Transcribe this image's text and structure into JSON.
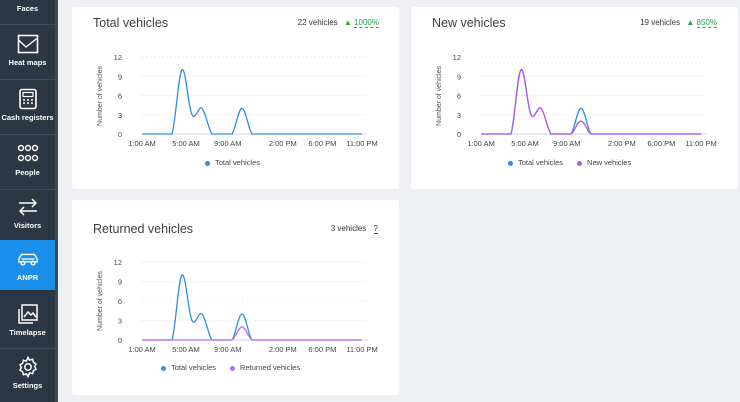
{
  "sidebar": {
    "items": [
      {
        "label": "Faces",
        "icon": "faces-icon"
      },
      {
        "label": "Heat maps",
        "icon": "heat-map-icon"
      },
      {
        "label": "Cash registers",
        "icon": "cash-register-icon"
      },
      {
        "label": "People",
        "icon": "people-icon"
      },
      {
        "label": "Visitors",
        "icon": "visitors-icon"
      },
      {
        "label": "ANPR",
        "icon": "car-icon",
        "active": true
      },
      {
        "label": "Timelapse",
        "icon": "timelapse-icon"
      },
      {
        "label": "Settings",
        "icon": "gear-icon"
      }
    ]
  },
  "colors": {
    "total": "#2f8ee5",
    "new": "#b259f2",
    "returned": "#c06cf2",
    "accent": "#1a8ee8",
    "positive": "#2aa24c"
  },
  "cards": {
    "total": {
      "title": "Total vehicles",
      "count": "22 vehicles",
      "trend": "1000%"
    },
    "new": {
      "title": "New vehicles",
      "count": "19 vehicles",
      "trend": "850%"
    },
    "returned": {
      "title": "Returned vehicles",
      "count": "3 vehicles",
      "help": "?"
    }
  },
  "chart_common": {
    "ylabel": "Number of vehicles",
    "yticks": [
      "12",
      "9",
      "6",
      "3",
      "0"
    ],
    "xticks": [
      "1:00 AM",
      "5:00 AM",
      "9:00 AM",
      "2:00 PM",
      "6:00 PM",
      "11:00 PM"
    ]
  },
  "chart_data": [
    {
      "type": "line",
      "title": "Total vehicles",
      "ylabel": "Number of vehicles",
      "ylim": [
        0,
        12
      ],
      "x": [
        "1:00 AM",
        "2:00 AM",
        "3:00 AM",
        "4:00 AM",
        "5:00 AM",
        "6:00 AM",
        "7:00 AM",
        "8:00 AM",
        "9:00 AM",
        "10:00 AM",
        "11:00 AM",
        "12:00 PM",
        "1:00 PM",
        "2:00 PM",
        "3:00 PM",
        "4:00 PM",
        "5:00 PM",
        "6:00 PM",
        "7:00 PM",
        "8:00 PM",
        "9:00 PM",
        "10:00 PM",
        "11:00 PM"
      ],
      "series": [
        {
          "name": "Total vehicles",
          "values": [
            0,
            0,
            0,
            0,
            10,
            3,
            4,
            0,
            0,
            0,
            4,
            0,
            0,
            0,
            0,
            0,
            0,
            0,
            0,
            0,
            0,
            0,
            0
          ]
        }
      ],
      "xticks": [
        "1:00 AM",
        "5:00 AM",
        "9:00 AM",
        "2:00 PM",
        "6:00 PM",
        "11:00 PM"
      ],
      "legend": "bottom"
    },
    {
      "type": "line",
      "title": "New vehicles",
      "ylabel": "Number of vehicles",
      "ylim": [
        0,
        12
      ],
      "x": [
        "1:00 AM",
        "2:00 AM",
        "3:00 AM",
        "4:00 AM",
        "5:00 AM",
        "6:00 AM",
        "7:00 AM",
        "8:00 AM",
        "9:00 AM",
        "10:00 AM",
        "11:00 AM",
        "12:00 PM",
        "1:00 PM",
        "2:00 PM",
        "3:00 PM",
        "4:00 PM",
        "5:00 PM",
        "6:00 PM",
        "7:00 PM",
        "8:00 PM",
        "9:00 PM",
        "10:00 PM",
        "11:00 PM"
      ],
      "series": [
        {
          "name": "Total vehicles",
          "values": [
            0,
            0,
            0,
            0,
            10,
            3,
            4,
            0,
            0,
            0,
            4,
            0,
            0,
            0,
            0,
            0,
            0,
            0,
            0,
            0,
            0,
            0,
            0
          ]
        },
        {
          "name": "New vehicles",
          "values": [
            0,
            0,
            0,
            0,
            10,
            3,
            4,
            0,
            0,
            0,
            2,
            0,
            0,
            0,
            0,
            0,
            0,
            0,
            0,
            0,
            0,
            0,
            0
          ]
        }
      ],
      "xticks": [
        "1:00 AM",
        "5:00 AM",
        "9:00 AM",
        "2:00 PM",
        "6:00 PM",
        "11:00 PM"
      ],
      "legend": "bottom"
    },
    {
      "type": "line",
      "title": "Returned vehicles",
      "ylabel": "Number of vehicles",
      "ylim": [
        0,
        12
      ],
      "x": [
        "1:00 AM",
        "2:00 AM",
        "3:00 AM",
        "4:00 AM",
        "5:00 AM",
        "6:00 AM",
        "7:00 AM",
        "8:00 AM",
        "9:00 AM",
        "10:00 AM",
        "11:00 AM",
        "12:00 PM",
        "1:00 PM",
        "2:00 PM",
        "3:00 PM",
        "4:00 PM",
        "5:00 PM",
        "6:00 PM",
        "7:00 PM",
        "8:00 PM",
        "9:00 PM",
        "10:00 PM",
        "11:00 PM"
      ],
      "series": [
        {
          "name": "Total vehicles",
          "values": [
            0,
            0,
            0,
            0,
            10,
            3,
            4,
            0,
            0,
            0,
            4,
            0,
            0,
            0,
            0,
            0,
            0,
            0,
            0,
            0,
            0,
            0,
            0
          ]
        },
        {
          "name": "Returned vehicles",
          "values": [
            0,
            0,
            0,
            0,
            0,
            0,
            0,
            0,
            0,
            0,
            2,
            0,
            0,
            0,
            0,
            0,
            0,
            0,
            0,
            0,
            0,
            0,
            0
          ]
        }
      ],
      "xticks": [
        "1:00 AM",
        "5:00 AM",
        "9:00 AM",
        "2:00 PM",
        "6:00 PM",
        "11:00 PM"
      ],
      "legend": "bottom"
    }
  ]
}
